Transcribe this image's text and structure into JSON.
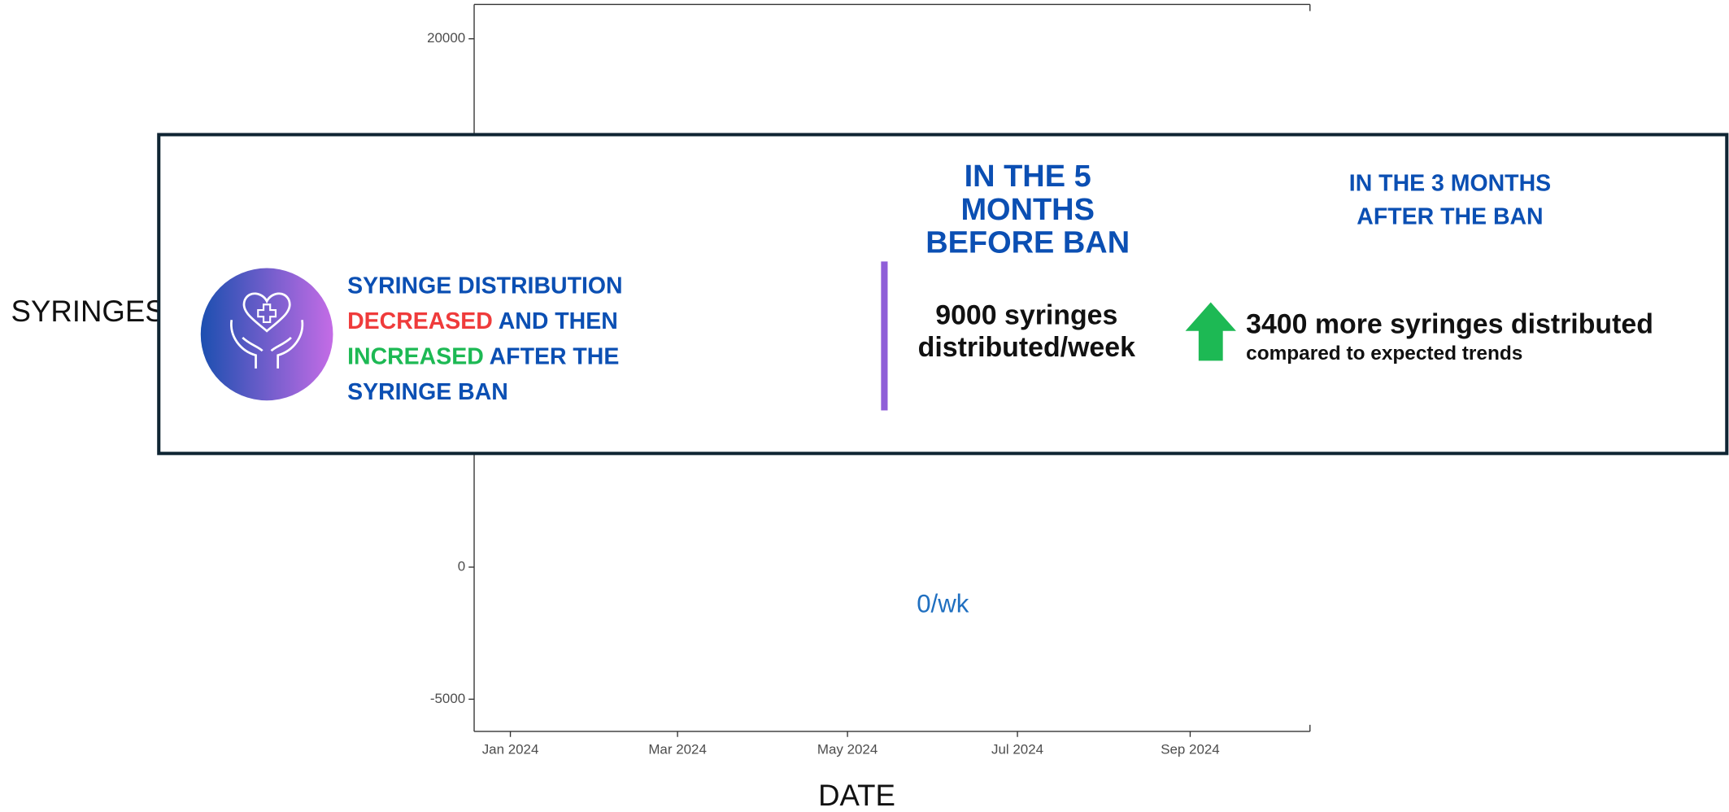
{
  "chart_data": {
    "type": "line",
    "x_label": "DATE",
    "y_label": "SYRINGES",
    "annotation": "0/wk",
    "xlim": [
      "2023-12-19",
      "2024-10-14"
    ],
    "xticks": [
      {
        "value": "2024-01-01",
        "label": "Jan 2024"
      },
      {
        "value": "2024-03-01",
        "label": "Mar 2024"
      },
      {
        "value": "2024-05-01",
        "label": "May 2024"
      },
      {
        "value": "2024-07-01",
        "label": "Jul 2024"
      },
      {
        "value": "2024-09-01",
        "label": "Sep 2024"
      }
    ],
    "ylim": [
      -6220,
      21300
    ],
    "yticks": [
      -5000,
      0,
      20000
    ]
  },
  "card": {
    "headline": [
      [
        "SYRINGE DISTRIBUTION"
      ],
      [
        "DECREASED",
        " AND THEN"
      ],
      [
        "INCREASED",
        " AFTER THE"
      ],
      [
        "SYRINGE BAN"
      ]
    ],
    "before": {
      "title": [
        "IN THE 5",
        "MONTHS",
        "BEFORE BAN"
      ],
      "stat": [
        "9000 syringes",
        "distributed/week"
      ]
    },
    "after": {
      "title": [
        "IN THE 3 MONTHS",
        "AFTER THE BAN"
      ],
      "stat": "3400 more syringes distributed",
      "note": "compared to expected trends"
    }
  }
}
